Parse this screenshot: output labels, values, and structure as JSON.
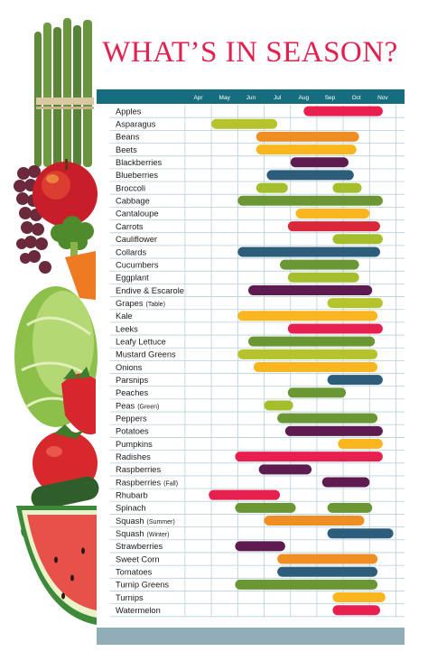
{
  "title": "WHAT’S IN SEASON?",
  "colors": {
    "panel": "#91adb7",
    "header_bar": "#166d7e",
    "grid_line": "#b7d0da",
    "title": "#e3214f"
  },
  "illustration": [
    "asparagus",
    "grapes",
    "apple",
    "broccoli",
    "carrot",
    "lettuce",
    "strawberry",
    "tomato",
    "zucchini",
    "watermelon"
  ],
  "chart_data": {
    "type": "gantt",
    "title": "WHAT’S IN SEASON?",
    "x_axis": {
      "months": [
        "Apr",
        "May",
        "Jun",
        "Jul",
        "Aug",
        "Sep",
        "Oct",
        "Nov"
      ],
      "unit": "month"
    },
    "grid": true,
    "rows": [
      {
        "name": "Apples",
        "start": 8.0,
        "end": 11.0,
        "color": "#e8204f"
      },
      {
        "name": "Asparagus",
        "start": 4.5,
        "end": 7.0,
        "color": "#b5c42c"
      },
      {
        "name": "Beans",
        "start": 6.2,
        "end": 10.1,
        "color": "#ef8f23"
      },
      {
        "name": "Beets",
        "start": 6.2,
        "end": 10.0,
        "color": "#f9b61e"
      },
      {
        "name": "Blackberries",
        "start": 7.5,
        "end": 9.7,
        "color": "#5d1b50"
      },
      {
        "name": "Blueberries",
        "start": 6.6,
        "end": 9.9,
        "color": "#2e5d7c"
      },
      {
        "name": "Broccoli",
        "start": 6.2,
        "end": 7.4,
        "color": "#a5be2c",
        "start2": 9.1,
        "end2": 10.2
      },
      {
        "name": "Cabbage",
        "start": 5.5,
        "end": 11.0,
        "color": "#6a9633"
      },
      {
        "name": "Cantaloupe",
        "start": 7.7,
        "end": 10.5,
        "color": "#f9b61e"
      },
      {
        "name": "Carrots",
        "start": 7.4,
        "end": 10.9,
        "color": "#d8283a"
      },
      {
        "name": "Cauliflower",
        "start": 9.1,
        "end": 11.0,
        "color": "#a5be2c"
      },
      {
        "name": "Collards",
        "start": 5.5,
        "end": 10.9,
        "color": "#2e5d7c"
      },
      {
        "name": "Cucumbers",
        "start": 7.1,
        "end": 10.1,
        "color": "#6a9633"
      },
      {
        "name": "Eggplant",
        "start": 7.4,
        "end": 10.1,
        "color": "#a5be2c"
      },
      {
        "name": "Endive & Escarole",
        "start": 5.9,
        "end": 10.6,
        "color": "#5d1b50"
      },
      {
        "name": "Grapes",
        "sub": "(Table)",
        "start": 8.9,
        "end": 11.0,
        "color": "#b5c42c"
      },
      {
        "name": "Kale",
        "start": 5.5,
        "end": 10.8,
        "color": "#f9b61e"
      },
      {
        "name": "Leeks",
        "start": 7.4,
        "end": 11.0,
        "color": "#e8204f"
      },
      {
        "name": "Leafy Lettuce",
        "start": 5.9,
        "end": 10.7,
        "color": "#6a9633"
      },
      {
        "name": "Mustard Greens",
        "start": 5.5,
        "end": 10.8,
        "color": "#b5c42c"
      },
      {
        "name": "Onions",
        "start": 6.1,
        "end": 10.8,
        "color": "#f9b61e"
      },
      {
        "name": "Parsnips",
        "start": 8.9,
        "end": 11.0,
        "color": "#2e5d7c"
      },
      {
        "name": "Peaches",
        "start": 7.4,
        "end": 9.6,
        "color": "#6a9633"
      },
      {
        "name": "Peas",
        "sub": "(Green)",
        "start": 6.5,
        "end": 7.6,
        "color": "#a5be2c"
      },
      {
        "name": "Peppers",
        "start": 7.0,
        "end": 10.8,
        "color": "#6a9633"
      },
      {
        "name": "Potatoes",
        "start": 7.3,
        "end": 11.0,
        "color": "#5d1b50"
      },
      {
        "name": "Pumpkins",
        "start": 9.3,
        "end": 11.0,
        "color": "#f9b61e"
      },
      {
        "name": "Radishes",
        "start": 5.4,
        "end": 11.0,
        "color": "#e8204f"
      },
      {
        "name": "Raspberries",
        "start": 6.3,
        "end": 8.3,
        "color": "#5d1b50"
      },
      {
        "name": "Raspberries",
        "sub": "(Fall)",
        "start": 8.7,
        "end": 10.5,
        "color": "#5d1b50"
      },
      {
        "name": "Rhubarb",
        "start": 4.4,
        "end": 7.1,
        "color": "#e8204f"
      },
      {
        "name": "Spinach",
        "start": 5.4,
        "end": 7.7,
        "color": "#6a9633",
        "start2": 8.9,
        "end2": 10.6
      },
      {
        "name": "Squash",
        "sub": "(Summer)",
        "start": 6.5,
        "end": 10.3,
        "color": "#ef8f23"
      },
      {
        "name": "Squash",
        "sub": "(Winter)",
        "start": 8.9,
        "end": 11.4,
        "color": "#2e5d7c"
      },
      {
        "name": "Strawberries",
        "start": 5.4,
        "end": 7.3,
        "color": "#5d1b50"
      },
      {
        "name": "Sweet Corn",
        "start": 7.0,
        "end": 10.8,
        "color": "#ef8f23"
      },
      {
        "name": "Tomatoes",
        "start": 7.0,
        "end": 10.8,
        "color": "#2e5d7c"
      },
      {
        "name": "Turnip Greens",
        "start": 5.4,
        "end": 10.8,
        "color": "#6a9633"
      },
      {
        "name": "Turnips",
        "start": 9.1,
        "end": 11.1,
        "color": "#f9b61e"
      },
      {
        "name": "Watermelon",
        "start": 9.1,
        "end": 10.9,
        "color": "#e8204f"
      }
    ]
  }
}
